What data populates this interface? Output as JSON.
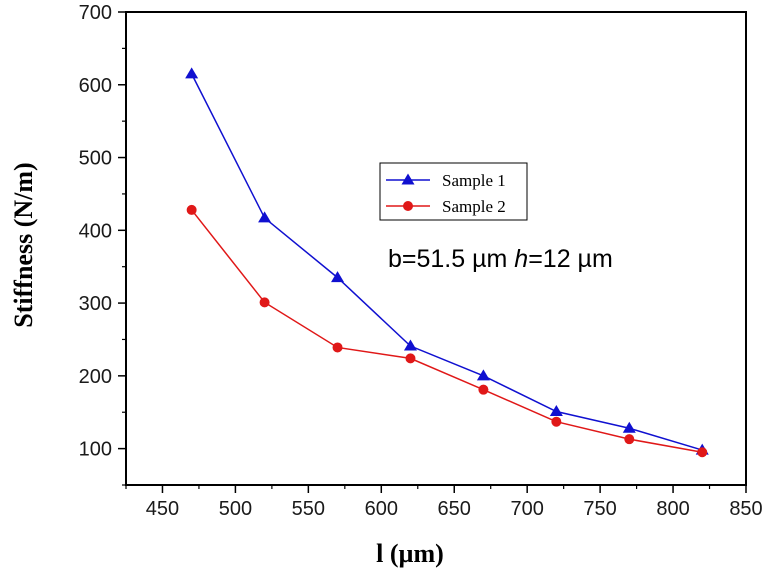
{
  "chart_data": {
    "type": "line",
    "title": "",
    "xlabel": "l (µm)",
    "ylabel": "Stiffness (N/m)",
    "xlim": [
      425,
      850
    ],
    "ylim": [
      50,
      700
    ],
    "x_ticks": [
      450,
      500,
      550,
      600,
      650,
      700,
      750,
      800,
      850
    ],
    "y_ticks": [
      100,
      200,
      300,
      400,
      500,
      600,
      700
    ],
    "x": [
      470,
      520,
      570,
      620,
      670,
      720,
      770,
      820
    ],
    "series": [
      {
        "name": "Sample 1",
        "marker": "triangle",
        "color": "#1010d0",
        "values": [
          615,
          417,
          335,
          241,
          200,
          151,
          128,
          98
        ]
      },
      {
        "name": "Sample 2",
        "marker": "circle",
        "color": "#e01818",
        "values": [
          428,
          301,
          239,
          224,
          181,
          137,
          113,
          95
        ]
      }
    ],
    "legend_position": "center-right",
    "grid": false,
    "annotation": {
      "b_part": "b=51.5 µm  ",
      "h_italic": "h",
      "h_part": "=12 µm"
    }
  }
}
